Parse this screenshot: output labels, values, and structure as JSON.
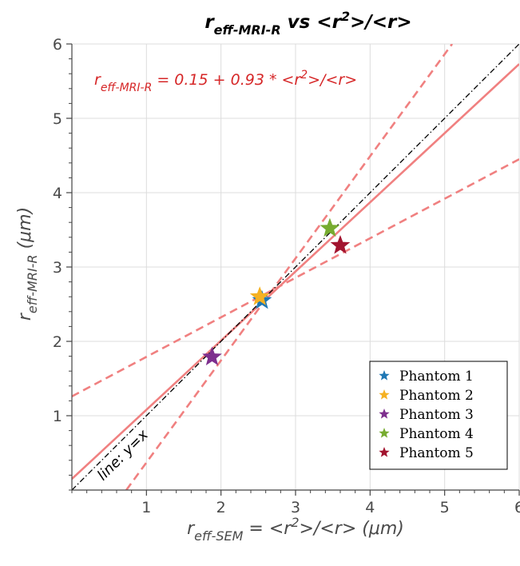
{
  "chart_data": {
    "type": "scatter",
    "title": {
      "main": "r",
      "sub": "eff-MRI-R",
      "rest": " vs <r",
      "sup": "2",
      "tail": ">/<r>"
    },
    "xlabel": {
      "main": "r",
      "sub": "eff-SEM",
      "rest": " = <r",
      "sup": "2",
      "tail": ">/<r> (",
      "greek": "μ",
      "end": "m)"
    },
    "ylabel": {
      "main": "r",
      "sub": "eff-MRI-R",
      "rest": " (",
      "greek": "μ",
      "end": "m)"
    },
    "xlim": [
      0,
      6
    ],
    "ylim": [
      0,
      6
    ],
    "xticks": [
      1,
      2,
      3,
      4,
      5,
      6
    ],
    "yticks": [
      1,
      2,
      3,
      4,
      5,
      6
    ],
    "grid": true,
    "legend_position": "bottom-right",
    "fit_equation": {
      "main": "r",
      "sub": "eff-MRI-R",
      "rest": " = 0.15 + 0.93 * <r",
      "sup": "2",
      "tail": ">/<r>"
    },
    "fit": {
      "intercept": 0.15,
      "slope": 0.93,
      "color": "#f08080"
    },
    "confidence_band": {
      "upper": [
        [
          0,
          1.26
        ],
        [
          6,
          4.45
        ]
      ],
      "lower": [
        [
          0.73,
          0
        ],
        [
          5.1,
          6.0
        ]
      ],
      "color": "#f08080"
    },
    "identity_line": {
      "label": "line: y=x",
      "color": "#000000"
    },
    "series": [
      {
        "name": "Phantom 1",
        "x": 2.55,
        "y": 2.55,
        "color": "#1f77b4"
      },
      {
        "name": "Phantom 2",
        "x": 2.52,
        "y": 2.6,
        "color": "#f5b122"
      },
      {
        "name": "Phantom 3",
        "x": 1.88,
        "y": 1.79,
        "color": "#7e2f8e"
      },
      {
        "name": "Phantom 4",
        "x": 3.46,
        "y": 3.52,
        "color": "#77ac30"
      },
      {
        "name": "Phantom 5",
        "x": 3.6,
        "y": 3.29,
        "color": "#a2142f"
      }
    ]
  }
}
